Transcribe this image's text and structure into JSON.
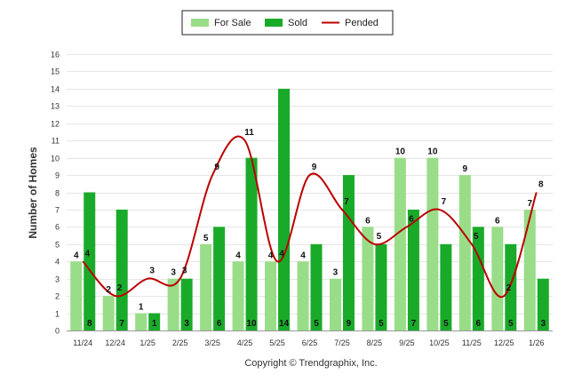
{
  "chart_data": {
    "type": "bar",
    "categories": [
      "11/24",
      "12/24",
      "1/25",
      "2/25",
      "3/25",
      "4/25",
      "5/25",
      "6/25",
      "7/25",
      "8/25",
      "9/25",
      "10/25",
      "11/25",
      "12/25",
      "1/26"
    ],
    "series": [
      {
        "name": "For Sale",
        "type": "bar",
        "color": "#99dd88",
        "values": [
          4,
          2,
          1,
          3,
          5,
          4,
          4,
          4,
          3,
          6,
          10,
          10,
          9,
          6,
          7
        ]
      },
      {
        "name": "Sold",
        "type": "bar",
        "color": "#1aaa2a",
        "values": [
          8,
          7,
          1,
          3,
          6,
          10,
          14,
          5,
          9,
          5,
          7,
          5,
          6,
          5,
          3
        ]
      },
      {
        "name": "Pended",
        "type": "line",
        "color": "#bb0000",
        "values": [
          4,
          2,
          3,
          3,
          9,
          11,
          4,
          9,
          7,
          5,
          6,
          7,
          5,
          2,
          8
        ]
      }
    ],
    "ylabel": "Number of Homes",
    "xlabel": "",
    "ylim": [
      0,
      16
    ],
    "yticks": [
      "0",
      "1",
      "2",
      "3",
      "4",
      "5",
      "6",
      "7",
      "8",
      "9",
      "10",
      "11",
      "12",
      "13",
      "14",
      "15",
      "16"
    ],
    "grid": true,
    "legend_position": "top-center"
  },
  "footer": {
    "credit": "Copyright © Trendgraphix, Inc."
  }
}
